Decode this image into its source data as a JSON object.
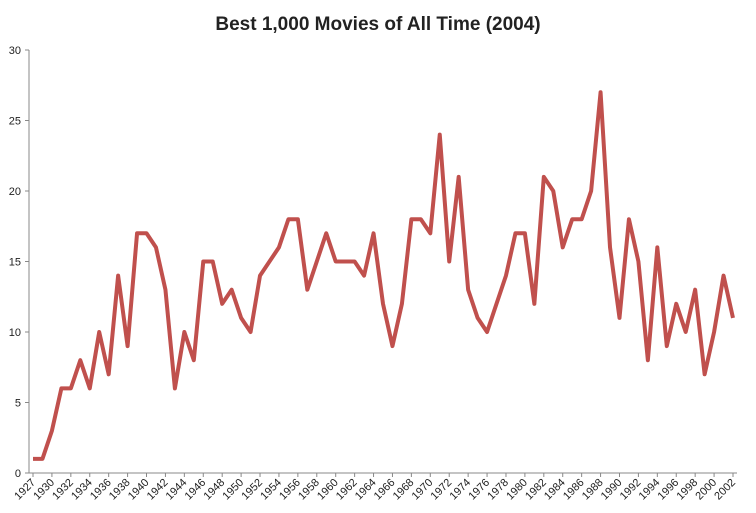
{
  "chart_data": {
    "type": "line",
    "title": "Best 1,000 Movies of All Time (2004)",
    "categories": [
      "1927",
      null,
      "1930",
      null,
      "1932",
      null,
      "1934",
      null,
      "1936",
      null,
      "1938",
      null,
      "1940",
      null,
      "1942",
      null,
      "1944",
      null,
      "1946",
      null,
      "1948",
      null,
      "1950",
      null,
      "1952",
      null,
      "1954",
      null,
      "1956",
      null,
      "1958",
      null,
      "1960",
      null,
      "1962",
      null,
      "1964",
      null,
      "1966",
      null,
      "1968",
      null,
      "1970",
      null,
      "1972",
      null,
      "1974",
      null,
      "1976",
      null,
      "1978",
      null,
      "1980",
      null,
      "1982",
      null,
      "1984",
      null,
      "1986",
      null,
      "1988",
      null,
      "1990",
      null,
      "1992",
      null,
      "1994",
      null,
      "1996",
      null,
      "1998",
      null,
      "2000",
      null,
      "2002"
    ],
    "series": [
      {
        "color": "#c0504d",
        "values": [
          1,
          1,
          3,
          6,
          6,
          8,
          6,
          10,
          7,
          14,
          9,
          17,
          17,
          16,
          13,
          6,
          10,
          8,
          15,
          15,
          12,
          13,
          11,
          10,
          14,
          15,
          16,
          18,
          18,
          13,
          15,
          17,
          15,
          15,
          15,
          14,
          17,
          12,
          9,
          12,
          18,
          18,
          17,
          24,
          15,
          21,
          13,
          11,
          10,
          12,
          14,
          17,
          17,
          12,
          21,
          20,
          16,
          18,
          18,
          20,
          27,
          16,
          11,
          18,
          15,
          8,
          16,
          9,
          12,
          10,
          13,
          7,
          10,
          14,
          11
        ]
      }
    ],
    "ylim": [
      0,
      30
    ],
    "yticks": [
      0,
      5,
      10,
      15,
      20,
      25,
      30
    ],
    "grid": false
  }
}
